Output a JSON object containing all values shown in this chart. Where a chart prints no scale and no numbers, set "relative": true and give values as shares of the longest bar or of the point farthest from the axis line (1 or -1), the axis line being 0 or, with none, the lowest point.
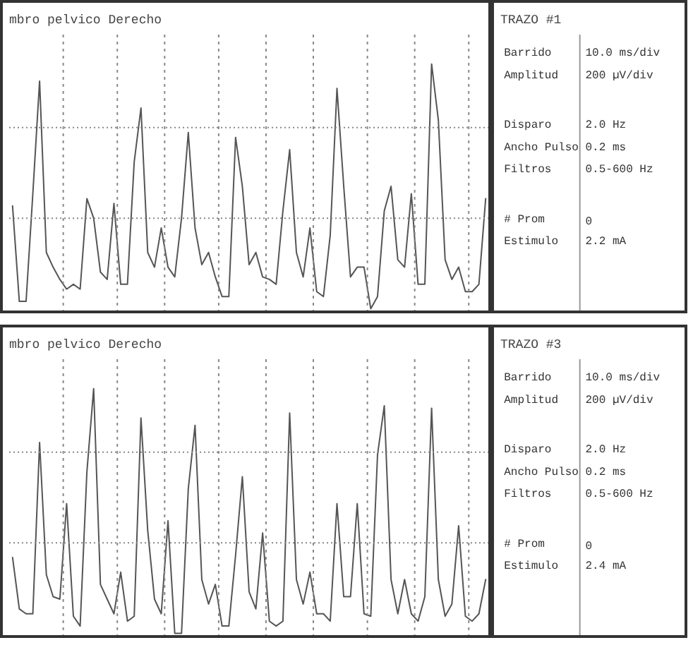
{
  "chart_data": [
    {
      "type": "line",
      "title": "mbro pelvico Derecho",
      "relative": true,
      "grid": true,
      "categories": [
        null,
        null,
        null,
        null,
        null,
        null,
        null,
        null,
        null,
        null,
        null,
        null,
        null,
        null,
        null,
        null,
        null,
        null,
        null,
        null,
        null,
        null,
        null,
        null,
        null,
        null,
        null,
        null,
        null,
        null,
        null,
        null,
        null,
        null,
        null,
        null,
        null,
        null,
        null,
        null,
        null,
        null,
        null,
        null,
        null,
        null,
        null,
        null,
        null,
        null,
        null,
        null,
        null,
        null,
        null,
        null,
        null,
        null,
        null,
        null,
        null,
        null,
        null,
        null,
        null,
        null,
        null,
        null,
        null,
        null,
        null
      ],
      "series": [
        {
          "color": "#555555",
          "values": [
            0.42,
            0.03,
            0.03,
            0.47,
            0.93,
            0.23,
            0.17,
            0.12,
            0.08,
            0.1,
            0.08,
            0.45,
            0.37,
            0.15,
            0.12,
            0.43,
            0.1,
            0.1,
            0.6,
            0.82,
            0.23,
            0.17,
            0.33,
            0.17,
            0.13,
            0.37,
            0.72,
            0.33,
            0.18,
            0.23,
            0.13,
            0.05,
            0.05,
            0.7,
            0.5,
            0.18,
            0.23,
            0.13,
            0.12,
            0.1,
            0.4,
            0.65,
            0.23,
            0.13,
            0.33,
            0.07,
            0.05,
            0.3,
            0.9,
            0.5,
            0.13,
            0.17,
            0.17,
            0.0,
            0.05,
            0.4,
            0.5,
            0.2,
            0.17,
            0.47,
            0.1,
            0.1,
            1.0,
            0.77,
            0.2,
            0.12,
            0.17,
            0.07,
            0.07,
            0.1,
            0.45
          ]
        }
      ]
    },
    {
      "type": "other",
      "title": "TRAZO #1",
      "annotations": [
        "Barrido",
        "10.0 ms/div",
        "Amplitud",
        "200 µV/div",
        "Disparo",
        "2.0 Hz",
        "Ancho Pulso",
        "0.2 ms",
        "Filtros",
        "0.5-600 Hz",
        "# Prom",
        "0",
        "Estimulo",
        "2.2 mA"
      ]
    },
    {
      "type": "line",
      "title": "mbro pelvico Derecho",
      "relative": true,
      "grid": true,
      "categories": [
        null,
        null,
        null,
        null,
        null,
        null,
        null,
        null,
        null,
        null,
        null,
        null,
        null,
        null,
        null,
        null,
        null,
        null,
        null,
        null,
        null,
        null,
        null,
        null,
        null,
        null,
        null,
        null,
        null,
        null,
        null,
        null,
        null,
        null,
        null,
        null,
        null,
        null,
        null,
        null,
        null,
        null,
        null,
        null,
        null,
        null,
        null,
        null,
        null,
        null,
        null,
        null,
        null,
        null,
        null,
        null,
        null,
        null,
        null,
        null,
        null,
        null,
        null,
        null,
        null,
        null,
        null,
        null,
        null,
        null,
        null
      ],
      "series": [
        {
          "color": "#555555",
          "values": [
            0.31,
            0.1,
            0.08,
            0.08,
            0.78,
            0.24,
            0.15,
            0.14,
            0.53,
            0.07,
            0.03,
            0.66,
            1.0,
            0.2,
            0.14,
            0.08,
            0.25,
            0.05,
            0.07,
            0.88,
            0.42,
            0.14,
            0.08,
            0.46,
            0.0,
            0.0,
            0.59,
            0.85,
            0.22,
            0.12,
            0.2,
            0.03,
            0.03,
            0.32,
            0.64,
            0.17,
            0.1,
            0.41,
            0.05,
            0.03,
            0.05,
            0.9,
            0.22,
            0.12,
            0.25,
            0.08,
            0.08,
            0.05,
            0.53,
            0.15,
            0.15,
            0.53,
            0.08,
            0.07,
            0.73,
            0.93,
            0.22,
            0.08,
            0.22,
            0.08,
            0.05,
            0.15,
            0.92,
            0.22,
            0.07,
            0.12,
            0.44,
            0.07,
            0.05,
            0.08,
            0.22
          ]
        }
      ]
    },
    {
      "type": "other",
      "title": "TRAZO #3",
      "annotations": [
        "Barrido",
        "10.0 ms/div",
        "Amplitud",
        "200 µV/div",
        "Disparo",
        "2.0 Hz",
        "Ancho Pulso",
        "0.2 ms",
        "Filtros",
        "0.5-600 Hz",
        "# Prom",
        "0",
        "Estimulo",
        "2.4 mA"
      ]
    }
  ]
}
